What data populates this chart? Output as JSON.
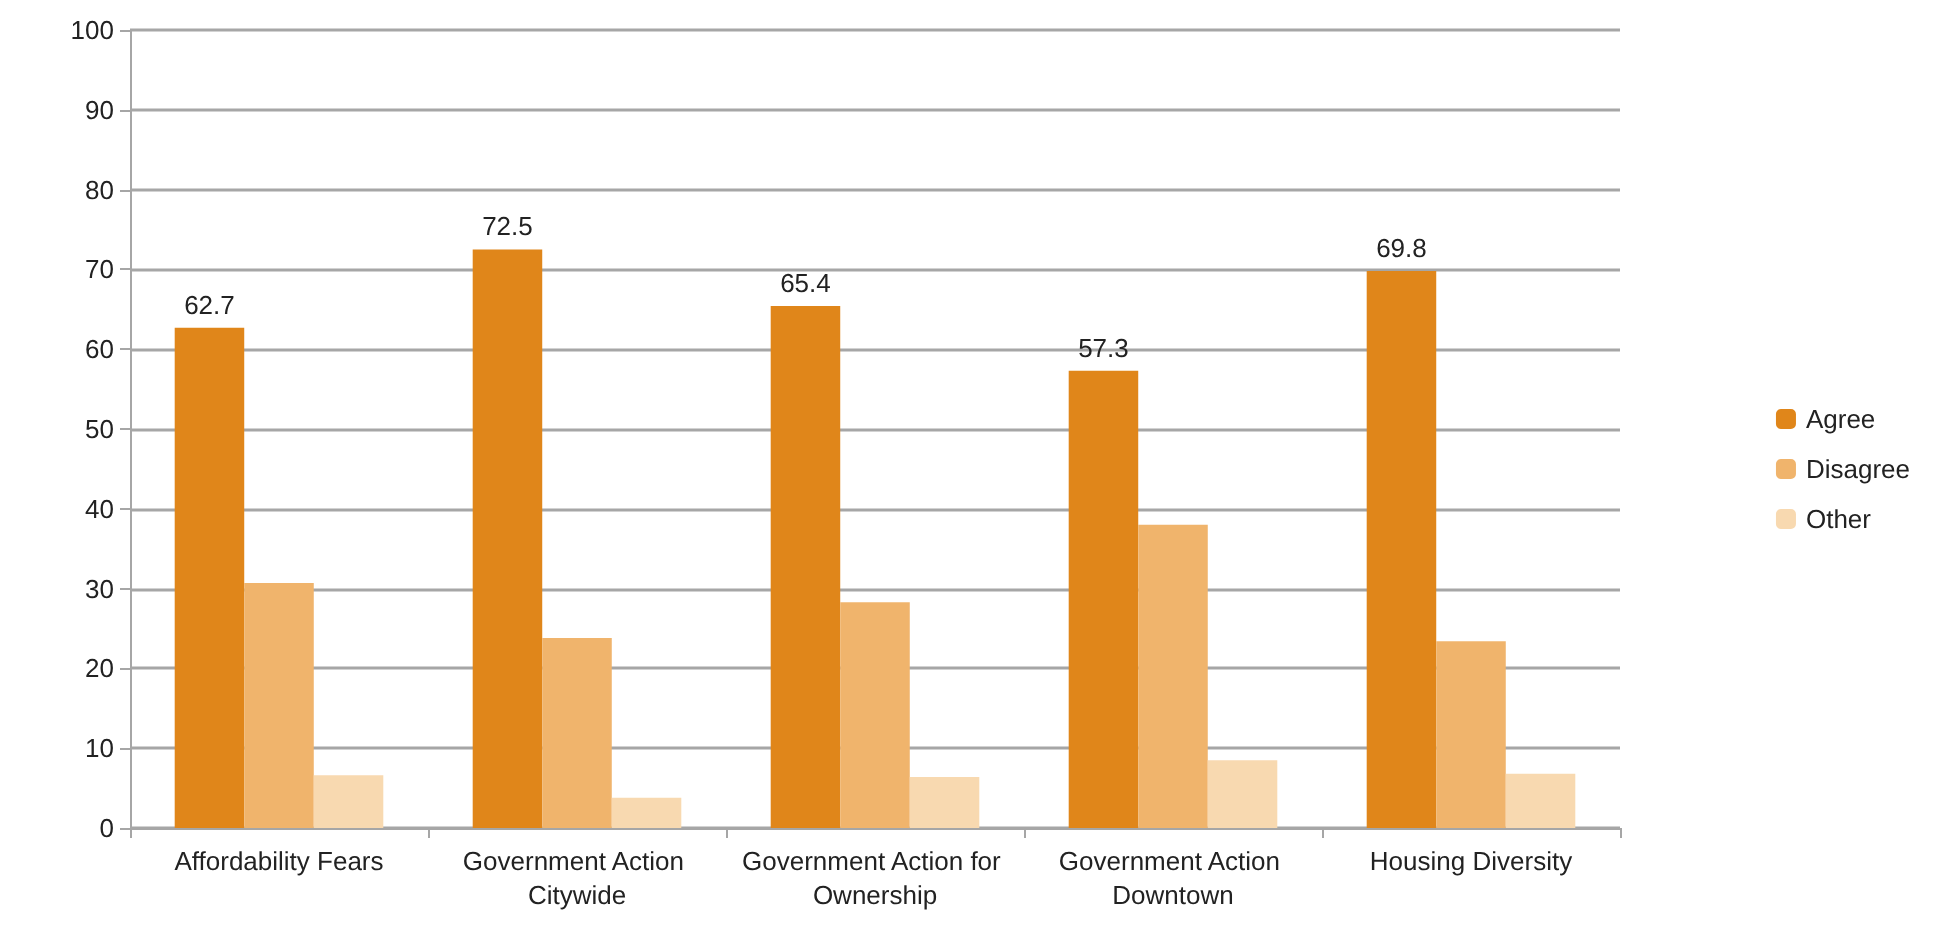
{
  "chart_data": {
    "type": "bar",
    "categories": [
      "Affordability Fears",
      "Government Action Citywide",
      "Government Action for Ownership",
      "Government Action Downtown",
      "Housing Diversity"
    ],
    "series": [
      {
        "name": "Agree",
        "color": "#e0861a",
        "values": [
          62.7,
          72.5,
          65.4,
          57.3,
          69.8
        ],
        "value_labels": [
          "62.7",
          "72.5",
          "65.4",
          "57.3",
          "69.8"
        ]
      },
      {
        "name": "Disagree",
        "color": "#f0b46c",
        "values": [
          30.7,
          23.8,
          28.3,
          38.0,
          23.4
        ]
      },
      {
        "name": "Other",
        "color": "#f8d9b0",
        "values": [
          6.6,
          3.8,
          6.4,
          8.5,
          6.8
        ]
      }
    ],
    "ylim": [
      0,
      100
    ],
    "yticks": [
      0,
      10,
      20,
      30,
      40,
      50,
      60,
      70,
      80,
      90,
      100
    ],
    "grid": "y",
    "legend": "right"
  }
}
